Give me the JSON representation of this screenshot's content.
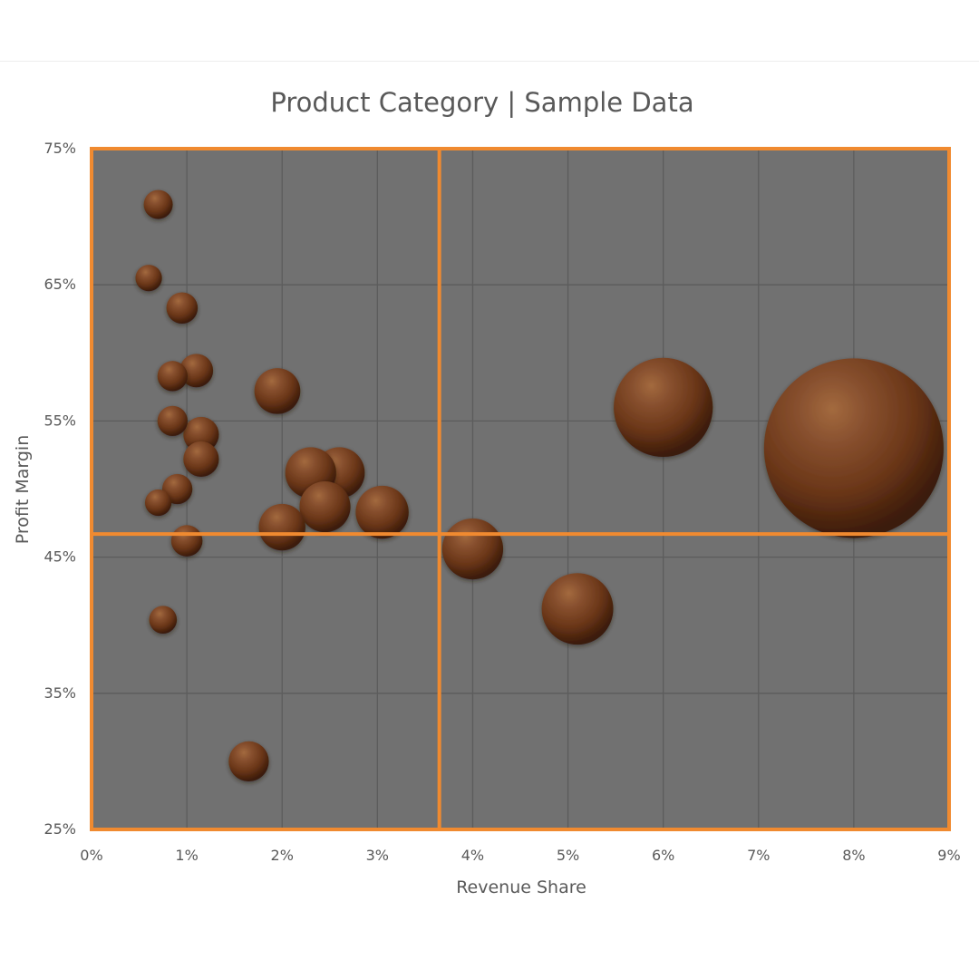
{
  "chart_data": {
    "type": "bubble",
    "title": "Product Category | Sample Data",
    "xlabel": "Revenue Share",
    "ylabel": "Profit Margin",
    "xlim": [
      0,
      9
    ],
    "ylim": [
      25,
      75
    ],
    "x_ticks": [
      "0%",
      "1%",
      "2%",
      "3%",
      "4%",
      "5%",
      "6%",
      "7%",
      "8%",
      "9%"
    ],
    "y_ticks": [
      "25%",
      "35%",
      "45%",
      "55%",
      "65%",
      "75%"
    ],
    "x_tick_values": [
      0,
      1,
      2,
      3,
      4,
      5,
      6,
      7,
      8,
      9
    ],
    "y_tick_values": [
      25,
      35,
      45,
      55,
      65,
      75
    ],
    "grid": true,
    "plot_background": "#717171",
    "quadrant_line_color": "#f08a30",
    "bubble_color": "#7a4426",
    "quadrant_lines": {
      "x": 3.65,
      "y": 46.7
    },
    "series": [
      {
        "points": [
          {
            "x": 0.7,
            "y": 70.9,
            "size": 1.2
          },
          {
            "x": 0.6,
            "y": 65.5,
            "size": 1.0
          },
          {
            "x": 0.95,
            "y": 63.3,
            "size": 1.4
          },
          {
            "x": 1.1,
            "y": 58.7,
            "size": 1.6
          },
          {
            "x": 0.85,
            "y": 58.3,
            "size": 1.3
          },
          {
            "x": 1.95,
            "y": 57.2,
            "size": 3.0
          },
          {
            "x": 0.85,
            "y": 55.0,
            "size": 1.3
          },
          {
            "x": 1.15,
            "y": 54.0,
            "size": 1.8
          },
          {
            "x": 1.15,
            "y": 52.2,
            "size": 1.8
          },
          {
            "x": 0.9,
            "y": 50.0,
            "size": 1.3
          },
          {
            "x": 0.7,
            "y": 49.0,
            "size": 1.0
          },
          {
            "x": 2.6,
            "y": 51.2,
            "size": 3.7
          },
          {
            "x": 2.3,
            "y": 51.2,
            "size": 3.7
          },
          {
            "x": 2.45,
            "y": 48.7,
            "size": 3.7
          },
          {
            "x": 3.05,
            "y": 48.3,
            "size": 4.0
          },
          {
            "x": 2.0,
            "y": 47.2,
            "size": 3.1
          },
          {
            "x": 1.0,
            "y": 46.2,
            "size": 1.4
          },
          {
            "x": 4.0,
            "y": 45.6,
            "size": 5.3
          },
          {
            "x": 0.75,
            "y": 40.4,
            "size": 1.1
          },
          {
            "x": 5.1,
            "y": 41.2,
            "size": 7.3
          },
          {
            "x": 6.0,
            "y": 56.0,
            "size": 14.0
          },
          {
            "x": 8.0,
            "y": 53.0,
            "size": 46.0
          },
          {
            "x": 1.65,
            "y": 30.0,
            "size": 2.3
          }
        ]
      }
    ]
  }
}
